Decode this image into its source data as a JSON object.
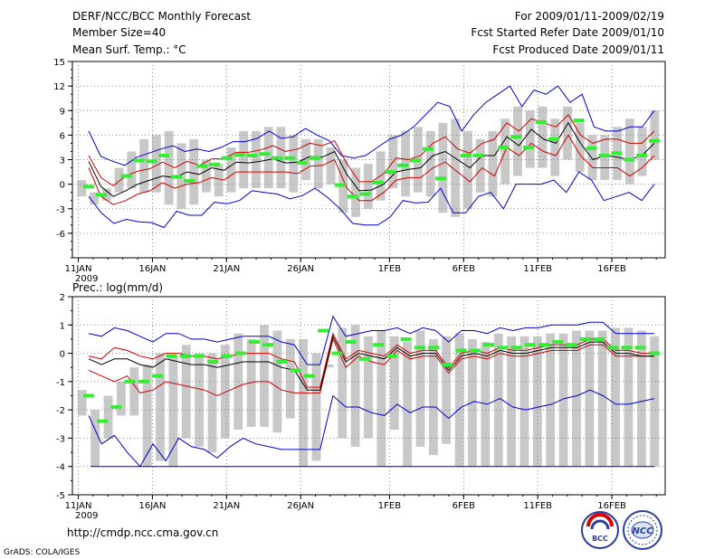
{
  "header": {
    "title": "DERF/NCC/BCC Monthly Forecast",
    "member_size": "Member Size=40",
    "period": "For 2009/01/11-2009/02/19",
    "start_date": "Fcst Started Refer Date 2009/01/10",
    "produced_date": "Fcst Produced Date 2009/01/11"
  },
  "footer": {
    "url": "http://cmdp.ncc.cma.gov.cn",
    "credit": "GrADS: COLA/IGES",
    "logo_left": "BCC",
    "logo_right": "NCC"
  },
  "colors": {
    "box": "#c8c8c8",
    "ensemble_mean": "#000000",
    "spread": "#d00000",
    "extreme": "#0000d0",
    "observed": "#33ee33",
    "grid": "#888888"
  },
  "chart_data": [
    {
      "type": "box",
      "title": "Mean Surf. Temp.: °C",
      "ylim": [
        -9,
        15
      ],
      "yticks": [
        "15",
        "12",
        "9",
        "6",
        "3",
        "0",
        "-3",
        "-6"
      ],
      "ytick_values": [
        15,
        12,
        9,
        6,
        3,
        0,
        -3,
        -6
      ],
      "xtick_labels": [
        "11JAN",
        "16JAN",
        "21JAN",
        "26JAN",
        "1FEB",
        "6FEB",
        "11FEB",
        "16FEB"
      ],
      "xtick_days": [
        1,
        6,
        11,
        16,
        22,
        27,
        32,
        37
      ],
      "year_label": "2009",
      "days": 40,
      "upper_extreme": [
        6.5,
        3.4,
        2.8,
        2.3,
        3.3,
        3.8,
        4.3,
        4.7,
        4.0,
        4.3,
        4.0,
        4.5,
        5.2,
        5.2,
        5.6,
        6.5,
        5.6,
        5.8,
        6.8,
        6.0,
        5.3,
        3.5,
        3.2,
        3.5,
        4.5,
        5.5,
        6.0,
        7.0,
        8.5,
        10.0,
        9.5,
        6.5,
        8.5,
        10.0,
        11.0,
        12.0,
        9.5,
        11.5,
        11.0,
        12.0,
        10.0,
        11.0,
        7.0,
        6.5,
        6.5,
        7.0,
        7.0,
        9.0
      ],
      "upper_spread": [
        3.5,
        0.8,
        -0.2,
        1.0,
        1.6,
        1.9,
        2.7,
        2.0,
        2.8,
        2.3,
        3.1,
        3.1,
        3.9,
        3.9,
        4.2,
        4.7,
        4.0,
        4.3,
        5.0,
        4.7,
        5.3,
        2.5,
        0.3,
        0.3,
        1.3,
        3.2,
        3.0,
        3.5,
        5.0,
        5.8,
        4.3,
        3.8,
        5.0,
        5.5,
        7.5,
        6.5,
        8.0,
        7.5,
        7.0,
        8.5,
        6.0,
        5.0,
        5.5,
        5.5,
        5.0,
        5.0,
        6.5
      ],
      "mean": [
        2.8,
        -0.3,
        -1.5,
        -0.8,
        0.0,
        0.5,
        1.0,
        0.8,
        1.5,
        1.2,
        2.0,
        1.7,
        2.7,
        2.6,
        2.8,
        3.1,
        2.6,
        2.7,
        3.4,
        3.3,
        4.0,
        1.2,
        -0.8,
        -0.7,
        0.0,
        1.5,
        1.8,
        2.0,
        3.5,
        4.0,
        3.0,
        2.0,
        3.5,
        3.5,
        5.8,
        4.7,
        6.7,
        5.5,
        5.0,
        7.5,
        5.0,
        3.0,
        3.5,
        3.3,
        3.0,
        3.5,
        5.0
      ],
      "lower_spread": [
        2.0,
        -1.5,
        -2.5,
        -2.0,
        -1.2,
        -0.8,
        0.2,
        -0.5,
        0.0,
        0.2,
        0.8,
        0.5,
        1.5,
        1.5,
        1.5,
        1.5,
        1.5,
        1.3,
        2.2,
        2.3,
        3.0,
        -0.5,
        -2.0,
        -2.0,
        -1.0,
        0.5,
        0.8,
        0.8,
        2.0,
        2.7,
        1.5,
        0.3,
        2.0,
        1.0,
        4.5,
        3.5,
        5.0,
        4.0,
        3.5,
        6.0,
        3.5,
        2.0,
        2.0,
        2.0,
        1.0,
        2.0,
        3.5
      ],
      "lower_extreme": [
        -1.5,
        -3.5,
        -4.8,
        -4.3,
        -4.6,
        -4.7,
        -5.3,
        -3.3,
        -3.8,
        -3.8,
        -2.2,
        -2.4,
        -2.0,
        -0.8,
        -1.0,
        -1.2,
        -1.8,
        -1.4,
        -0.5,
        -1.6,
        -3.0,
        -4.8,
        -5.0,
        -5.0,
        -4.0,
        -2.0,
        -2.3,
        -2.2,
        -0.5,
        -3.5,
        -3.5,
        -1.5,
        -1.0,
        -3.0,
        0.0,
        0.0,
        0.0,
        0.5,
        -1.0,
        1.5,
        0.5,
        -2.0,
        -1.5,
        -1.0,
        -2.0,
        0.0
      ],
      "box_top": [
        0.5,
        -1.0,
        -0.5,
        2.0,
        4.0,
        5.5,
        6.0,
        6.5,
        5.0,
        5.5,
        3.0,
        2.5,
        4.5,
        6.5,
        6.5,
        7.0,
        7.0,
        6.0,
        5.5,
        5.5,
        4.5,
        3.0,
        2.0,
        2.5,
        4.0,
        6.0,
        6.5,
        7.0,
        6.5,
        7.5,
        8.0,
        6.5,
        5.5,
        6.5,
        8.0,
        9.5,
        9.0,
        9.5,
        8.0,
        9.5,
        7.5,
        6.0,
        6.0,
        7.0,
        8.0,
        7.0,
        9.0
      ],
      "box_bottom": [
        -1.5,
        -2.5,
        -2.0,
        -1.0,
        -0.5,
        -1.0,
        -1.0,
        -2.5,
        -3.0,
        -2.5,
        -1.0,
        -1.5,
        -1.0,
        -0.5,
        -0.5,
        -0.5,
        -0.5,
        -1.0,
        0.5,
        -0.5,
        0.0,
        -3.5,
        -4.0,
        -3.0,
        -2.0,
        -0.5,
        -1.5,
        -1.0,
        -1.5,
        -3.5,
        -4.0,
        -3.0,
        -1.0,
        -1.5,
        0.0,
        1.0,
        2.0,
        2.0,
        1.0,
        3.0,
        1.5,
        0.5,
        0.5,
        0.5,
        0.0,
        1.0,
        3.0
      ],
      "observed": [
        -0.3,
        -1.3,
        null,
        1.0,
        2.9,
        2.8,
        3.5,
        0.9,
        0.4,
        2.2,
        2.4,
        3.2,
        3.6,
        3.5,
        3.7,
        3.2,
        3.2,
        2.6,
        3.2,
        null,
        -0.1,
        -1.5,
        -1.2,
        0.2,
        1.5,
        2.3,
        2.9,
        4.3,
        0.7,
        null,
        3.5,
        3.5,
        null,
        4.5,
        5.8,
        4.5,
        7.6,
        5.5,
        null,
        7.8,
        4.4,
        3.5,
        3.8,
        3.0,
        3.5,
        5.3
      ]
    },
    {
      "type": "box",
      "title": "Prec.: log(mm/d)",
      "ylim": [
        -5,
        2
      ],
      "yticks": [
        "2",
        "1",
        "0",
        "-1",
        "-2",
        "-3",
        "-4",
        "-5"
      ],
      "ytick_values": [
        2,
        1,
        0,
        -1,
        -2,
        -3,
        -4,
        -5
      ],
      "xtick_labels": [
        "11JAN",
        "16JAN",
        "21JAN",
        "26JAN",
        "1FEB",
        "6FEB",
        "11FEB",
        "16FEB"
      ],
      "xtick_days": [
        1,
        6,
        11,
        16,
        22,
        27,
        32,
        37
      ],
      "year_label": "2009",
      "days": 40,
      "upper_extreme": [
        0.7,
        0.6,
        0.9,
        0.8,
        0.6,
        0.4,
        0.7,
        0.7,
        0.5,
        0.5,
        0.4,
        0.5,
        0.6,
        0.6,
        0.6,
        0.4,
        0.3,
        -0.4,
        -0.4,
        1.3,
        0.6,
        0.7,
        0.8,
        0.8,
        0.9,
        0.7,
        0.9,
        0.8,
        0.4,
        0.8,
        0.8,
        0.7,
        0.9,
        0.8,
        0.9,
        0.9,
        1.0,
        1.0,
        1.0,
        1.1,
        1.1,
        0.7,
        0.7,
        0.7,
        0.7
      ],
      "upper_spread": [
        -0.1,
        -0.2,
        0.2,
        0.1,
        -0.1,
        -0.2,
        0.0,
        0.0,
        -0.1,
        -0.1,
        -0.2,
        -0.1,
        0.0,
        0.0,
        0.0,
        -0.2,
        -0.3,
        -1.2,
        -1.2,
        0.7,
        -0.2,
        0.1,
        0.0,
        -0.1,
        0.3,
        0.0,
        0.1,
        0.1,
        -0.5,
        0.0,
        0.1,
        0.0,
        0.2,
        0.1,
        0.1,
        0.2,
        0.3,
        0.3,
        0.3,
        0.5,
        0.5,
        0.1,
        0.1,
        0.0,
        0.0
      ],
      "mean": [
        -0.2,
        -0.4,
        -0.2,
        -0.2,
        -0.4,
        -0.5,
        -0.2,
        -0.3,
        -0.4,
        -0.4,
        -0.5,
        -0.4,
        -0.3,
        -0.3,
        -0.3,
        -0.5,
        -0.6,
        -1.3,
        -1.3,
        0.6,
        -0.3,
        0.0,
        -0.1,
        -0.2,
        0.2,
        -0.1,
        0.0,
        0.0,
        -0.6,
        -0.1,
        0.0,
        -0.1,
        0.1,
        0.0,
        0.0,
        0.1,
        0.2,
        0.2,
        0.2,
        0.4,
        0.4,
        0.0,
        0.0,
        -0.1,
        -0.1
      ],
      "lower_spread": [
        -0.6,
        -0.8,
        -1.0,
        -0.8,
        -1.4,
        -1.3,
        -1.0,
        -1.1,
        -1.2,
        -1.3,
        -1.5,
        -1.3,
        -1.1,
        -1.0,
        -1.0,
        -1.3,
        -1.4,
        -1.4,
        -1.4,
        0.5,
        -0.5,
        -0.1,
        -0.3,
        -0.4,
        0.1,
        -0.2,
        -0.1,
        -0.1,
        -0.7,
        -0.2,
        -0.1,
        -0.2,
        0.0,
        -0.1,
        -0.1,
        0.0,
        0.1,
        0.1,
        0.1,
        0.3,
        0.3,
        -0.1,
        -0.1,
        -0.1,
        -0.1
      ],
      "lower_extreme": [
        -2.2,
        -3.2,
        -2.9,
        -3.5,
        -4.0,
        -3.2,
        -3.8,
        -3.0,
        -3.3,
        -3.4,
        -3.7,
        -3.3,
        -3.0,
        -3.2,
        -3.3,
        -3.4,
        -3.4,
        -3.4,
        -3.4,
        -1.5,
        -1.9,
        -1.9,
        -2.1,
        -2.2,
        -1.8,
        -2.1,
        -1.9,
        -1.9,
        -2.3,
        -1.9,
        -1.7,
        -1.8,
        -1.6,
        -1.9,
        -2.0,
        -1.9,
        -1.8,
        -1.6,
        -1.5,
        -1.3,
        -1.5,
        -1.8,
        -1.8,
        -1.7,
        -1.6
      ],
      "baseline": -4.0,
      "box_top": [
        -1.3,
        -2.0,
        -1.5,
        -1.0,
        -0.5,
        -0.4,
        0.0,
        -0.1,
        0.3,
        0.0,
        0.0,
        0.3,
        0.7,
        0.5,
        1.0,
        0.8,
        0.5,
        0.5,
        0.0,
        -0.4,
        0.9,
        1.0,
        0.6,
        0.8,
        0.6,
        0.4,
        0.8,
        0.5,
        0.6,
        0.7,
        0.5,
        0.4,
        0.7,
        0.6,
        0.6,
        0.6,
        0.7,
        0.7,
        0.8,
        0.8,
        0.8,
        0.9,
        0.9,
        0.8,
        0.6
      ],
      "box_bottom": [
        -2.2,
        -4.0,
        -3.0,
        -2.2,
        -2.2,
        -4.0,
        -3.8,
        -4.0,
        -3.0,
        -3.3,
        -3.5,
        -3.0,
        -2.7,
        -2.6,
        -2.6,
        -2.8,
        -2.3,
        -4.0,
        -3.8,
        -0.5,
        -3.0,
        -3.3,
        -3.0,
        -4.0,
        -2.7,
        -4.0,
        -3.3,
        -3.6,
        -3.2,
        -4.0,
        -4.0,
        -4.0,
        -4.0,
        -4.0,
        -4.0,
        -4.0,
        -4.0,
        -4.0,
        -4.0,
        -4.0,
        -4.0,
        -4.0,
        -4.0,
        -4.0,
        -4.0
      ],
      "observed": [
        -1.5,
        -2.4,
        -1.9,
        -1.0,
        -1.0,
        -0.8,
        -0.1,
        -0.1,
        -0.1,
        -0.3,
        -0.1,
        0.0,
        0.4,
        0.3,
        -0.3,
        -0.6,
        -0.8,
        0.8,
        0.0,
        0.4,
        -0.2,
        0.3,
        -0.1,
        0.5,
        0.2,
        0.2,
        -0.4,
        0.1,
        0.1,
        0.3,
        0.2,
        0.2,
        0.3,
        0.3,
        0.4,
        0.3,
        0.5,
        0.5,
        0.2,
        0.2,
        0.2,
        0.0
      ]
    }
  ]
}
